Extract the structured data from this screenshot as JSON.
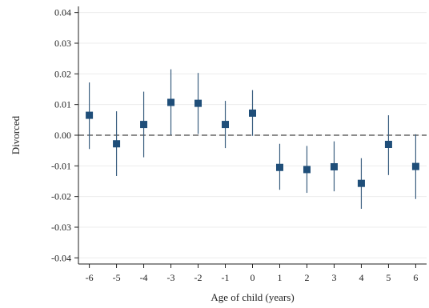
{
  "chart_data": {
    "type": "scatter",
    "xlabel": "Age of child (years)",
    "ylabel": "Divorced",
    "ylim": [
      -0.042,
      0.042
    ],
    "xlim": [
      -6.4,
      6.4
    ],
    "x_ticks": [
      -6,
      -5,
      -4,
      -3,
      -2,
      -1,
      0,
      1,
      2,
      3,
      4,
      5,
      6
    ],
    "x_tick_labels": [
      "-6",
      "-5",
      "-4",
      "-3",
      "-2",
      "-1",
      "0",
      "1",
      "2",
      "3",
      "4",
      "5",
      "6"
    ],
    "y_ticks": [
      -0.04,
      -0.03,
      -0.02,
      -0.01,
      0.0,
      0.01,
      0.02,
      0.03,
      0.04
    ],
    "y_tick_labels": [
      "-0.04",
      "-0.03",
      "-0.02",
      "-0.01",
      "0.00",
      "0.01",
      "0.02",
      "0.03",
      "0.04"
    ],
    "grid": true,
    "reference_line_y": 0,
    "marker_color": "#1f4e79",
    "ci_color": "#3b5f80",
    "points": [
      {
        "x": -6,
        "y": 0.0065,
        "ci_low": -0.0045,
        "ci_high": 0.0172
      },
      {
        "x": -5,
        "y": -0.0028,
        "ci_low": -0.0133,
        "ci_high": 0.0078
      },
      {
        "x": -4,
        "y": 0.0035,
        "ci_low": -0.0072,
        "ci_high": 0.0142
      },
      {
        "x": -3,
        "y": 0.0107,
        "ci_low": 0.0001,
        "ci_high": 0.0215
      },
      {
        "x": -2,
        "y": 0.0104,
        "ci_low": 0.0004,
        "ci_high": 0.0203
      },
      {
        "x": -1,
        "y": 0.0035,
        "ci_low": -0.0042,
        "ci_high": 0.0112
      },
      {
        "x": 0,
        "y": 0.0072,
        "ci_low": -0.0002,
        "ci_high": 0.0147
      },
      {
        "x": 1,
        "y": -0.0105,
        "ci_low": -0.0178,
        "ci_high": -0.0028
      },
      {
        "x": 2,
        "y": -0.0112,
        "ci_low": -0.0188,
        "ci_high": -0.0035
      },
      {
        "x": 3,
        "y": -0.0103,
        "ci_low": -0.0183,
        "ci_high": -0.002
      },
      {
        "x": 4,
        "y": -0.0157,
        "ci_low": -0.024,
        "ci_high": -0.0075
      },
      {
        "x": 5,
        "y": -0.003,
        "ci_low": -0.013,
        "ci_high": 0.0065
      },
      {
        "x": 6,
        "y": -0.0102,
        "ci_low": -0.0208,
        "ci_high": 0.0003
      }
    ]
  }
}
